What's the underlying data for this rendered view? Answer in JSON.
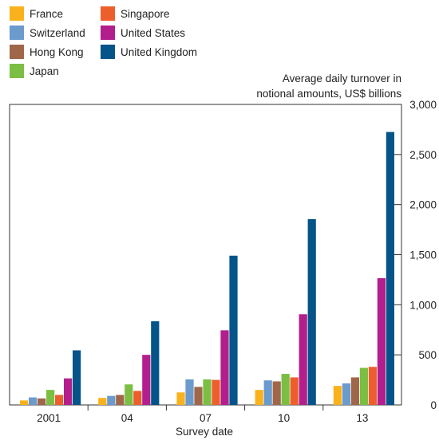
{
  "chart_data": {
    "type": "bar",
    "title": "",
    "xlabel": "Survey date",
    "ylabel_lines": [
      "Average daily turnover in",
      "notional amounts, US$ billions"
    ],
    "categories": [
      "2001",
      "04",
      "07",
      "10",
      "13"
    ],
    "ylim": [
      0,
      3000
    ],
    "yticks": [
      0,
      500,
      1000,
      1500,
      2000,
      2500,
      3000
    ],
    "ytick_labels": [
      "0",
      "500",
      "1,000",
      "1,500",
      "2,000",
      "2,500",
      "3,000"
    ],
    "y_axis_side": "right",
    "legend_position": "top-left",
    "grid": false,
    "series": [
      {
        "name": "France",
        "color": "#F9B21B",
        "values": [
          45,
          70,
          125,
          150,
          190
        ]
      },
      {
        "name": "Switzerland",
        "color": "#6B9ACD",
        "values": [
          75,
          90,
          255,
          245,
          215
        ]
      },
      {
        "name": "Hong Kong",
        "color": "#A0664A",
        "values": [
          65,
          100,
          180,
          235,
          275
        ]
      },
      {
        "name": "Japan",
        "color": "#7BBE43",
        "values": [
          150,
          205,
          255,
          310,
          370
        ]
      },
      {
        "name": "Singapore",
        "color": "#EC5F2C",
        "values": [
          100,
          140,
          250,
          275,
          380
        ]
      },
      {
        "name": "United States",
        "color": "#B31E8D",
        "values": [
          265,
          500,
          745,
          905,
          1265
        ]
      },
      {
        "name": "United Kingdom",
        "color": "#045389",
        "values": [
          545,
          835,
          1490,
          1855,
          2725
        ]
      }
    ],
    "legend_columns": [
      [
        "France",
        "Switzerland",
        "Hong Kong",
        "Japan"
      ],
      [
        "Singapore",
        "United States",
        "United Kingdom"
      ]
    ]
  }
}
